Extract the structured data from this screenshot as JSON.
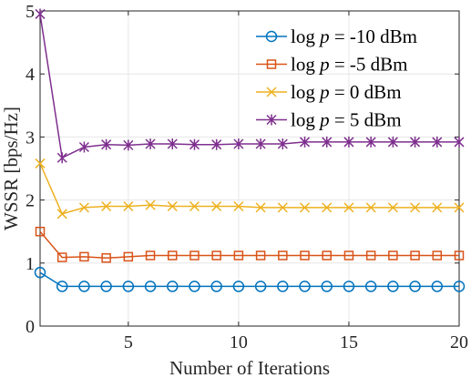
{
  "chart_data": {
    "type": "line",
    "xlabel": "Number of Iterations",
    "ylabel": "WSSR [bps/Hz]",
    "xlim": [
      1,
      20
    ],
    "ylim": [
      0,
      5
    ],
    "xticks": [
      5,
      10,
      15,
      20
    ],
    "yticks": [
      0,
      1,
      2,
      3,
      4,
      5
    ],
    "grid": true,
    "legend_position": "top-right",
    "x": [
      1,
      2,
      3,
      4,
      5,
      6,
      7,
      8,
      9,
      10,
      11,
      12,
      13,
      14,
      15,
      16,
      17,
      18,
      19,
      20
    ],
    "series": [
      {
        "name": "log p = -10 dBm",
        "name_prefix": "log ",
        "name_var": "p",
        "name_suffix": " = -10 dBm",
        "color": "#0072BD",
        "marker": "circle",
        "values": [
          0.85,
          0.63,
          0.63,
          0.63,
          0.63,
          0.63,
          0.63,
          0.63,
          0.63,
          0.63,
          0.63,
          0.63,
          0.63,
          0.63,
          0.63,
          0.63,
          0.63,
          0.63,
          0.63,
          0.63
        ]
      },
      {
        "name": "log p = -5 dBm",
        "name_prefix": "log ",
        "name_var": "p",
        "name_suffix": " = -5 dBm",
        "color": "#D95319",
        "marker": "square",
        "values": [
          1.5,
          1.09,
          1.1,
          1.08,
          1.1,
          1.12,
          1.12,
          1.12,
          1.12,
          1.12,
          1.12,
          1.12,
          1.12,
          1.12,
          1.12,
          1.12,
          1.12,
          1.12,
          1.12,
          1.12
        ]
      },
      {
        "name": "log p = 0 dBm",
        "name_prefix": "log ",
        "name_var": "p",
        "name_suffix": " = 0 dBm",
        "color": "#EDB120",
        "marker": "x",
        "values": [
          2.58,
          1.78,
          1.88,
          1.9,
          1.9,
          1.92,
          1.9,
          1.9,
          1.9,
          1.9,
          1.88,
          1.88,
          1.88,
          1.88,
          1.88,
          1.88,
          1.88,
          1.88,
          1.88,
          1.88
        ]
      },
      {
        "name": "log p = 5 dBm",
        "name_prefix": "log ",
        "name_var": "p",
        "name_suffix": " = 5 dBm",
        "color": "#7E2F8E",
        "marker": "asterisk",
        "values": [
          4.95,
          2.67,
          2.84,
          2.88,
          2.87,
          2.89,
          2.89,
          2.88,
          2.88,
          2.89,
          2.89,
          2.89,
          2.92,
          2.92,
          2.92,
          2.92,
          2.92,
          2.92,
          2.92,
          2.92
        ]
      }
    ]
  }
}
